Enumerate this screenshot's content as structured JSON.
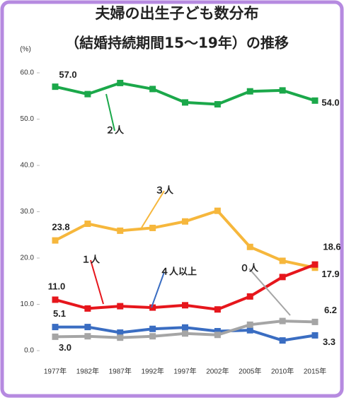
{
  "chart_data": {
    "type": "line",
    "title": "夫婦の出生子ども数分布",
    "subtitle": "（結婚持続期間15〜19年）の推移",
    "y_label": "(%)",
    "categories": [
      "1977年",
      "1982年",
      "1987年",
      "1992年",
      "1997年",
      "2002年",
      "2005年",
      "2010年",
      "2015年"
    ],
    "ylim": [
      0,
      60
    ],
    "yticks": [
      {
        "value": 0,
        "label": "0.0"
      },
      {
        "value": 10,
        "label": "10.0"
      },
      {
        "value": 20,
        "label": "20.0"
      },
      {
        "value": 30,
        "label": "30.0"
      },
      {
        "value": 40,
        "label": "40.0"
      },
      {
        "value": 50,
        "label": "50.0"
      },
      {
        "value": 60,
        "label": "60.0"
      }
    ],
    "grid": false,
    "series": [
      {
        "name": "２人",
        "color": "#1ba84a",
        "values": [
          57.0,
          55.4,
          57.8,
          56.5,
          53.6,
          53.2,
          56.0,
          56.2,
          54.0
        ],
        "value_labels": [
          "57.0",
          null,
          null,
          null,
          null,
          null,
          null,
          null,
          "54.0"
        ]
      },
      {
        "name": "３人",
        "color": "#f6b73c",
        "values": [
          23.8,
          27.4,
          25.9,
          26.5,
          27.9,
          30.2,
          22.4,
          19.4,
          17.9
        ],
        "value_labels": [
          "23.8",
          null,
          null,
          null,
          null,
          null,
          null,
          null,
          "17.9"
        ]
      },
      {
        "name": "１人",
        "color": "#e6161c",
        "values": [
          11.0,
          9.1,
          9.6,
          9.3,
          9.8,
          8.9,
          11.7,
          15.9,
          18.6
        ],
        "value_labels": [
          "11.0",
          null,
          null,
          null,
          null,
          null,
          null,
          null,
          "18.6"
        ]
      },
      {
        "name": "４人以上",
        "color": "#3a6dc2",
        "values": [
          5.1,
          5.1,
          3.9,
          4.7,
          5.0,
          4.2,
          4.4,
          2.2,
          3.3
        ],
        "value_labels": [
          "5.1",
          null,
          null,
          null,
          null,
          null,
          null,
          null,
          "3.3"
        ]
      },
      {
        "name": "０人",
        "color": "#a5a5a5",
        "values": [
          3.0,
          3.1,
          2.8,
          3.1,
          3.7,
          3.4,
          5.6,
          6.4,
          6.2
        ],
        "value_labels": [
          "3.0",
          null,
          null,
          null,
          null,
          null,
          null,
          null,
          "6.2"
        ]
      }
    ]
  }
}
